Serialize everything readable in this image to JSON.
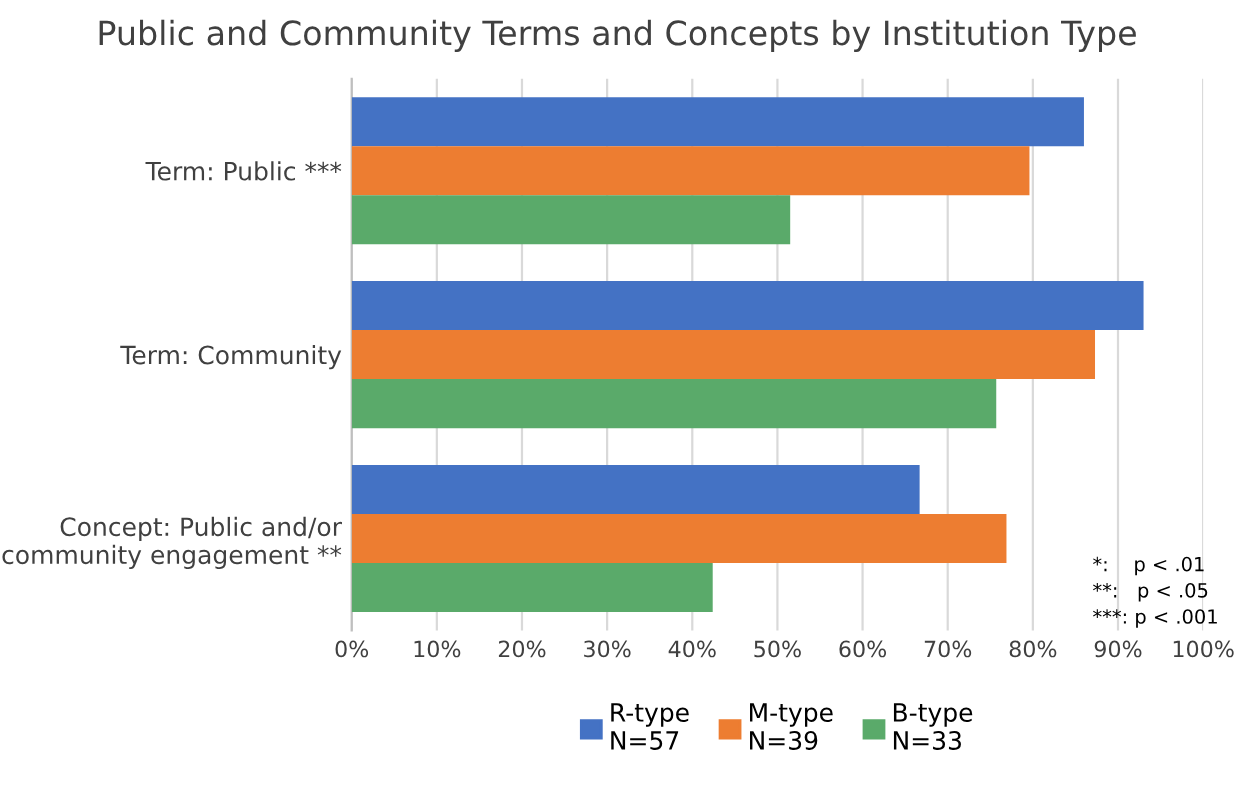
{
  "chart_data": {
    "type": "bar",
    "orientation": "horizontal",
    "title": "Public and Community Terms and Concepts by Institution Type",
    "categories": [
      "Term: Public ***",
      "Term: Community",
      "Concept: Public and/or\ncommunity engagement **"
    ],
    "series": [
      {
        "name": "R-type\nN=57",
        "color": "#4472c4",
        "values": [
          86,
          93,
          66.7
        ]
      },
      {
        "name": "M-type\nN=39",
        "color": "#ed7d31",
        "values": [
          79.6,
          87.3,
          76.9
        ]
      },
      {
        "name": "B-type\nN=33",
        "color": "#5aaa6a",
        "values": [
          51.5,
          75.7,
          42.4
        ]
      }
    ],
    "xlim": [
      0,
      100
    ],
    "xticks": [
      {
        "value": 0,
        "label": "0%"
      },
      {
        "value": 10,
        "label": "10%"
      },
      {
        "value": 20,
        "label": "20%"
      },
      {
        "value": 30,
        "label": "30%"
      },
      {
        "value": 40,
        "label": "40%"
      },
      {
        "value": 50,
        "label": "50%"
      },
      {
        "value": 60,
        "label": "60%"
      },
      {
        "value": 70,
        "label": "70%"
      },
      {
        "value": 80,
        "label": "80%"
      },
      {
        "value": 90,
        "label": "90%"
      },
      {
        "value": 100,
        "label": "100%"
      }
    ],
    "annotations": [
      "*:    p < .01\n**:   p < .05\n***: p < .001"
    ],
    "grid": "x",
    "legend": "bottom"
  }
}
